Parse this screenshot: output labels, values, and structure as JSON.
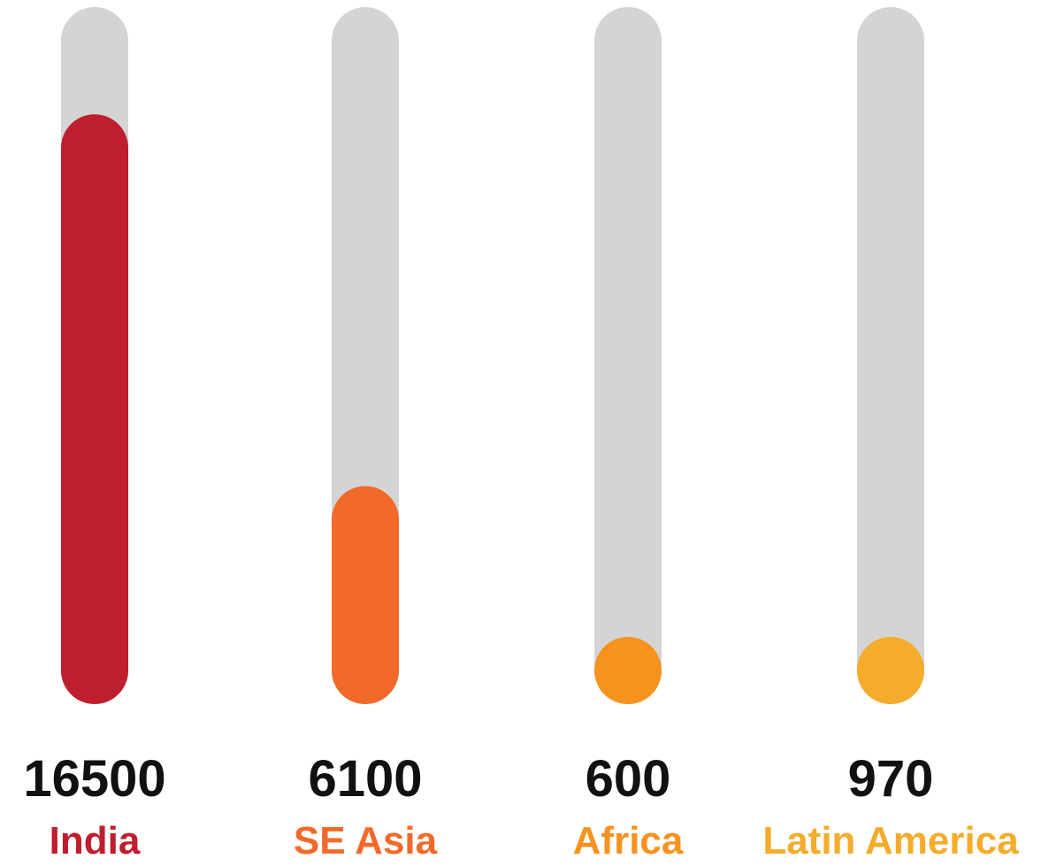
{
  "chart_data": {
    "type": "bar",
    "orientation": "vertical",
    "categories": [
      "India",
      "SE Asia",
      "Africa",
      "Latin America"
    ],
    "values": [
      16500,
      6100,
      600,
      970
    ],
    "data_labels": [
      "16500",
      "6100",
      "600",
      "970"
    ],
    "colors": [
      "#be1e2d",
      "#f26a2a",
      "#f6921e",
      "#f5ac2a"
    ],
    "track_color": "#d4d4d4",
    "value_label_color": "#111111",
    "title": "",
    "xlabel": "",
    "ylabel": "",
    "ylim": [
      0,
      19500
    ],
    "grid": false,
    "legend": "none"
  }
}
